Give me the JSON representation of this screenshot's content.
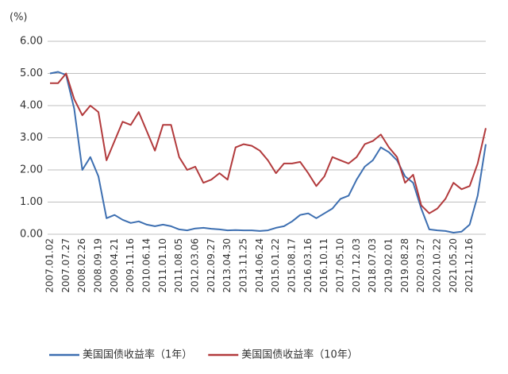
{
  "chart_data": {
    "type": "line",
    "y_label": "(%)",
    "categories": [
      "2007.01.02",
      null,
      "2007.07.27",
      null,
      "2008.02.26",
      null,
      "2008.09.19",
      null,
      "2009.04.21",
      null,
      "2009.11.16",
      null,
      "2010.06.14",
      null,
      "2011.01.10",
      null,
      "2011.08.05",
      null,
      "2012.03.06",
      null,
      "2012.09.27",
      null,
      "2013.04.30",
      null,
      "2013.11.25",
      null,
      "2014.06.24",
      null,
      "2015.01.22",
      null,
      "2015.08.17",
      null,
      "2016.03.16",
      null,
      "2016.10.11",
      null,
      "2017.05.10",
      null,
      "2017.12.03",
      null,
      "2018.07.03",
      null,
      "2019.02.01",
      null,
      "2019.08.28",
      null,
      "2020.03.27",
      null,
      "2020.10.22",
      null,
      "2021.05.20",
      null,
      "2021.12.16",
      null,
      null
    ],
    "series": [
      {
        "name": "美国国债收益率（1年）",
        "color": "#3d6fb1",
        "values": [
          5.0,
          5.05,
          4.95,
          3.9,
          2.0,
          2.4,
          1.8,
          0.5,
          0.6,
          0.45,
          0.35,
          0.4,
          0.3,
          0.25,
          0.3,
          0.25,
          0.15,
          0.12,
          0.18,
          0.2,
          0.17,
          0.15,
          0.12,
          0.13,
          0.12,
          0.12,
          0.1,
          0.12,
          0.2,
          0.25,
          0.4,
          0.6,
          0.65,
          0.5,
          0.65,
          0.8,
          1.1,
          1.2,
          1.7,
          2.1,
          2.3,
          2.7,
          2.55,
          2.3,
          1.8,
          1.6,
          0.8,
          0.15,
          0.12,
          0.1,
          0.05,
          0.08,
          0.3,
          1.2,
          2.8
        ]
      },
      {
        "name": "美国国债收益率（10年）",
        "color": "#b23a3c",
        "values": [
          4.7,
          4.7,
          5.0,
          4.2,
          3.7,
          4.0,
          3.8,
          2.3,
          2.9,
          3.5,
          3.4,
          3.8,
          3.2,
          2.6,
          3.4,
          3.4,
          2.4,
          2.0,
          2.1,
          1.6,
          1.7,
          1.9,
          1.7,
          2.7,
          2.8,
          2.75,
          2.6,
          2.3,
          1.9,
          2.2,
          2.2,
          2.25,
          1.9,
          1.5,
          1.8,
          2.4,
          2.3,
          2.2,
          2.4,
          2.8,
          2.9,
          3.1,
          2.7,
          2.4,
          1.6,
          1.85,
          0.9,
          0.65,
          0.8,
          1.1,
          1.6,
          1.4,
          1.5,
          2.2,
          3.3
        ]
      }
    ],
    "ylim": [
      0,
      6
    ],
    "yticks": [
      {
        "value": 0,
        "label": "0.00"
      },
      {
        "value": 1,
        "label": "1.00"
      },
      {
        "value": 2,
        "label": "2.00"
      },
      {
        "value": 3,
        "label": "3.00"
      },
      {
        "value": 4,
        "label": "4.00"
      },
      {
        "value": 5,
        "label": "5.00"
      },
      {
        "value": 6,
        "label": "6.00"
      }
    ],
    "grid": true,
    "legend": "bottom"
  }
}
